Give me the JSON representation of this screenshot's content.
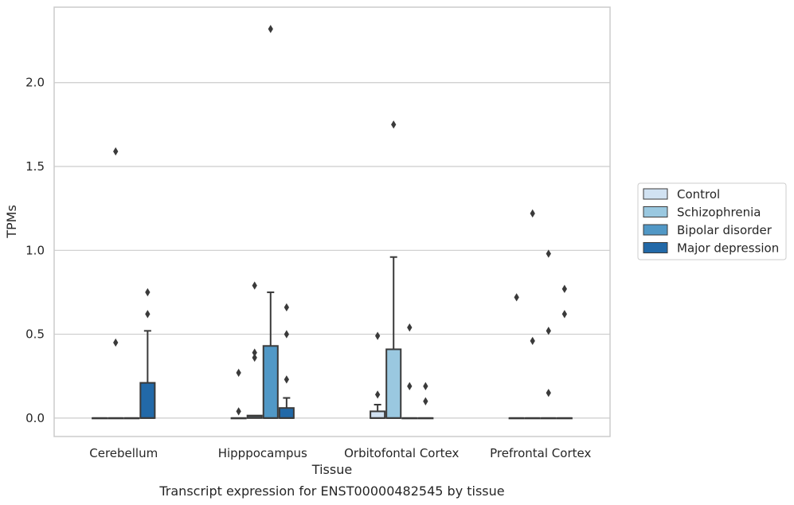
{
  "chart_data": {
    "type": "box",
    "caption": "Transcript expression for ENST00000482545 by tissue",
    "xlabel": "Tissue",
    "ylabel": "TPMs",
    "ylim": [
      -0.11,
      2.45
    ],
    "yticks": [
      0.0,
      0.5,
      1.0,
      1.5,
      2.0
    ],
    "ytick_labels": [
      "0.0",
      "0.5",
      "1.0",
      "1.5",
      "2.0"
    ],
    "grid": "horizontal",
    "legend_position": "right",
    "categories": [
      "Cerebellum",
      "Hipppocampus",
      "Orbitofontal Cortex",
      "Prefrontal Cortex"
    ],
    "series": [
      {
        "name": "Control",
        "color": "#d1e2f2",
        "boxes": [
          {
            "q1": 0,
            "median": 0,
            "q3": 0,
            "whisker_low": 0,
            "whisker_high": 0,
            "outliers": []
          },
          {
            "q1": 0,
            "median": 0,
            "q3": 0,
            "whisker_low": 0,
            "whisker_high": 0,
            "outliers": [
              0.04,
              0.27
            ]
          },
          {
            "q1": 0,
            "median": 0,
            "q3": 0.04,
            "whisker_low": 0,
            "whisker_high": 0.08,
            "outliers": [
              0.14,
              0.49
            ]
          },
          {
            "q1": 0,
            "median": 0,
            "q3": 0,
            "whisker_low": 0,
            "whisker_high": 0,
            "outliers": [
              0.72
            ]
          }
        ]
      },
      {
        "name": "Schizophrenia",
        "color": "#9ac8e0",
        "boxes": [
          {
            "q1": 0,
            "median": 0,
            "q3": 0,
            "whisker_low": 0,
            "whisker_high": 0,
            "outliers": [
              0.45,
              1.59
            ]
          },
          {
            "q1": 0,
            "median": 0.01,
            "q3": 0.015,
            "whisker_low": 0,
            "whisker_high": 0.015,
            "outliers": [
              0.36,
              0.39,
              0.79
            ]
          },
          {
            "q1": 0,
            "median": 0,
            "q3": 0.41,
            "whisker_low": 0,
            "whisker_high": 0.96,
            "outliers": [
              1.75
            ]
          },
          {
            "q1": 0,
            "median": 0,
            "q3": 0,
            "whisker_low": 0,
            "whisker_high": 0,
            "outliers": [
              0.46,
              1.22
            ]
          }
        ]
      },
      {
        "name": "Bipolar disorder",
        "color": "#5198c6",
        "boxes": [
          {
            "q1": 0,
            "median": 0,
            "q3": 0,
            "whisker_low": 0,
            "whisker_high": 0,
            "outliers": []
          },
          {
            "q1": 0,
            "median": 0,
            "q3": 0.43,
            "whisker_low": 0,
            "whisker_high": 0.75,
            "outliers": [
              2.32
            ]
          },
          {
            "q1": 0,
            "median": 0,
            "q3": 0,
            "whisker_low": 0,
            "whisker_high": 0,
            "outliers": [
              0.19,
              0.54
            ]
          },
          {
            "q1": 0,
            "median": 0,
            "q3": 0,
            "whisker_low": 0,
            "whisker_high": 0,
            "outliers": [
              0.15,
              0.52,
              0.98
            ]
          }
        ]
      },
      {
        "name": "Major depression",
        "color": "#2269a8",
        "boxes": [
          {
            "q1": 0,
            "median": 0,
            "q3": 0.21,
            "whisker_low": 0,
            "whisker_high": 0.52,
            "outliers": [
              0.62,
              0.75
            ]
          },
          {
            "q1": 0,
            "median": 0,
            "q3": 0.06,
            "whisker_low": 0,
            "whisker_high": 0.12,
            "outliers": [
              0.23,
              0.5,
              0.66
            ]
          },
          {
            "q1": 0,
            "median": 0,
            "q3": 0,
            "whisker_low": 0,
            "whisker_high": 0,
            "outliers": [
              0.1,
              0.19
            ]
          },
          {
            "q1": 0,
            "median": 0,
            "q3": 0,
            "whisker_low": 0,
            "whisker_high": 0,
            "outliers": [
              0.62,
              0.77
            ]
          }
        ]
      }
    ]
  },
  "colors": {
    "box_edge": "#3a3a3a",
    "grid": "#cccccc",
    "frame": "#cccccc",
    "text": "#262626"
  }
}
